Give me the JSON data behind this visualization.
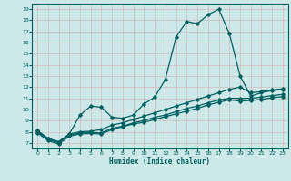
{
  "title": "",
  "xlabel": "Humidex (Indice chaleur)",
  "ylabel": "",
  "bg_color": "#cce8e8",
  "grid_color": "#a0c8c8",
  "line_color": "#006060",
  "xlim": [
    -0.5,
    23.5
  ],
  "ylim": [
    6.5,
    19.5
  ],
  "xticks": [
    0,
    1,
    2,
    3,
    4,
    5,
    6,
    7,
    8,
    9,
    10,
    11,
    12,
    13,
    14,
    15,
    16,
    17,
    18,
    19,
    20,
    21,
    22,
    23
  ],
  "yticks": [
    7,
    8,
    9,
    10,
    11,
    12,
    13,
    14,
    15,
    16,
    17,
    18,
    19
  ],
  "series": [
    {
      "x": [
        0,
        1,
        2,
        3,
        4,
        5,
        6,
        7,
        8,
        9,
        10,
        11,
        12,
        13,
        14,
        15,
        16,
        17,
        18,
        19,
        20,
        21,
        22,
        23
      ],
      "y": [
        8.1,
        7.4,
        7.1,
        7.8,
        9.5,
        10.3,
        10.2,
        9.3,
        9.2,
        9.5,
        10.5,
        11.1,
        12.7,
        16.5,
        17.9,
        17.7,
        18.5,
        19.0,
        16.8,
        13.0,
        11.2,
        11.5,
        11.7,
        11.8
      ]
    },
    {
      "x": [
        0,
        1,
        2,
        3,
        4,
        5,
        6,
        7,
        8,
        9,
        10,
        11,
        12,
        13,
        14,
        15,
        16,
        17,
        18,
        19,
        20,
        21,
        22,
        23
      ],
      "y": [
        8.1,
        7.4,
        7.1,
        7.8,
        8.0,
        8.05,
        8.2,
        8.6,
        8.8,
        9.1,
        9.4,
        9.7,
        10.0,
        10.3,
        10.6,
        10.9,
        11.2,
        11.5,
        11.8,
        12.0,
        11.5,
        11.6,
        11.75,
        11.85
      ]
    },
    {
      "x": [
        0,
        1,
        2,
        3,
        4,
        5,
        6,
        7,
        8,
        9,
        10,
        11,
        12,
        13,
        14,
        15,
        16,
        17,
        18,
        19,
        20,
        21,
        22,
        23
      ],
      "y": [
        8.0,
        7.3,
        7.0,
        7.7,
        7.9,
        7.95,
        7.9,
        8.3,
        8.5,
        8.8,
        9.0,
        9.3,
        9.5,
        9.8,
        10.1,
        10.3,
        10.6,
        10.85,
        11.0,
        11.0,
        11.0,
        11.1,
        11.25,
        11.35
      ]
    },
    {
      "x": [
        0,
        1,
        2,
        3,
        4,
        5,
        6,
        7,
        8,
        9,
        10,
        11,
        12,
        13,
        14,
        15,
        16,
        17,
        18,
        19,
        20,
        21,
        22,
        23
      ],
      "y": [
        7.9,
        7.2,
        6.9,
        7.6,
        7.8,
        7.85,
        7.8,
        8.2,
        8.45,
        8.7,
        8.85,
        9.1,
        9.35,
        9.6,
        9.85,
        10.1,
        10.4,
        10.65,
        10.85,
        10.75,
        10.8,
        10.9,
        11.05,
        11.15
      ]
    }
  ]
}
